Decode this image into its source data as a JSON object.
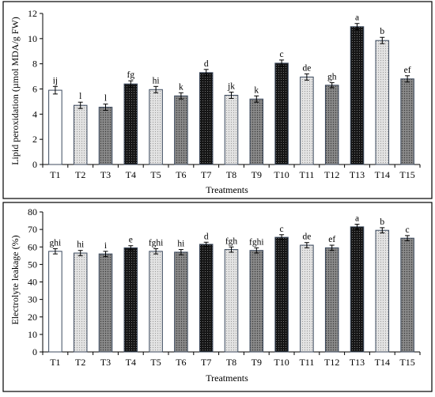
{
  "chart_data": [
    {
      "type": "bar",
      "xlabel": "Treatments",
      "ylabel": "Lipid peroxidation (µmol MDA/g FW)",
      "ylim": [
        0,
        12
      ],
      "yticks": [
        0,
        2,
        4,
        6,
        8,
        10,
        12
      ],
      "categories": [
        "T1",
        "T2",
        "T3",
        "T4",
        "T5",
        "T6",
        "T7",
        "T8",
        "T9",
        "T10",
        "T11",
        "T12",
        "T13",
        "T14",
        "T15"
      ],
      "values": [
        5.9,
        4.7,
        4.55,
        6.4,
        5.95,
        5.45,
        7.3,
        5.5,
        5.2,
        8.05,
        6.95,
        6.3,
        10.95,
        9.85,
        6.8
      ],
      "errors": [
        0.3,
        0.25,
        0.25,
        0.25,
        0.25,
        0.25,
        0.25,
        0.25,
        0.25,
        0.25,
        0.25,
        0.2,
        0.25,
        0.25,
        0.25
      ],
      "letters": [
        "ij",
        "l",
        "l",
        "fg",
        "hi",
        "k",
        "d",
        "jk",
        "k",
        "c",
        "de",
        "gh",
        "a",
        "b",
        "ef"
      ],
      "fills": [
        "white",
        "light-dots",
        "dark-dots",
        "black-dots",
        "light-dots",
        "dark-dots",
        "black-dots",
        "light-dots",
        "dark-dots",
        "black-dots",
        "light-dots",
        "dark-dots",
        "black-dots",
        "light-dots",
        "dark-dots"
      ]
    },
    {
      "type": "bar",
      "xlabel": "Treatments",
      "ylabel": "Electrolyte leakage (%)",
      "ylim": [
        0,
        80
      ],
      "yticks": [
        0,
        10,
        20,
        30,
        40,
        50,
        60,
        70,
        80
      ],
      "categories": [
        "T1",
        "T2",
        "T3",
        "T4",
        "T5",
        "T6",
        "T7",
        "T8",
        "T9",
        "T10",
        "T11",
        "T12",
        "T13",
        "T14",
        "T15"
      ],
      "values": [
        57.5,
        56.5,
        56,
        59.5,
        57.5,
        57,
        61.5,
        58.5,
        58,
        65.5,
        61,
        59.5,
        71.5,
        69.5,
        65
      ],
      "errors": [
        1.5,
        1.5,
        1.5,
        1.2,
        1.5,
        1.5,
        1.2,
        1.5,
        1.5,
        1.5,
        1.5,
        1.5,
        1.5,
        1.5,
        1.5
      ],
      "letters": [
        "ghi",
        "hi",
        "i",
        "e",
        "fghi",
        "hi",
        "d",
        "fgh",
        "fghi",
        "c",
        "de",
        "ef",
        "a",
        "b",
        "c"
      ],
      "fills": [
        "white",
        "light-dots",
        "dark-dots",
        "black-dots",
        "light-dots",
        "dark-dots",
        "black-dots",
        "light-dots",
        "dark-dots",
        "black-dots",
        "light-dots",
        "dark-dots",
        "black-dots",
        "light-dots",
        "dark-dots"
      ]
    }
  ]
}
